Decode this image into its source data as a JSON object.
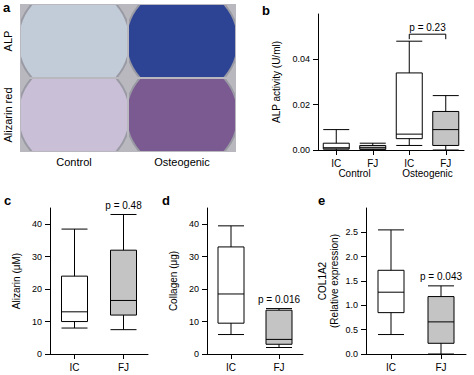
{
  "chart_data": [
    {
      "type": "box",
      "panel": "b",
      "ylabel": "ALP activity (U/ml)",
      "categories": [
        "IC",
        "FJ",
        "IC",
        "FJ"
      ],
      "groups": [
        "Control",
        "Control",
        "Osteogenic",
        "Osteogenic"
      ],
      "boxes": [
        [
          0,
          0.0005,
          0.001,
          0.003,
          0.009
        ],
        [
          0,
          0.0003,
          0.001,
          0.002,
          0.003
        ],
        [
          0.002,
          0.005,
          0.007,
          0.034,
          0.048
        ],
        [
          0,
          0.002,
          0.009,
          0.017,
          0.024
        ]
      ],
      "colors": [
        "#ffffff",
        "#c4c4c4",
        "#ffffff",
        "#c4c4c4"
      ],
      "ylim": [
        0,
        0.06
      ],
      "yticks": [
        {
          "value": 0,
          "label": "0.00"
        },
        {
          "value": 0.02,
          "label": "0.02"
        },
        {
          "value": 0.04,
          "label": "0.04"
        }
      ],
      "grid": false,
      "annotations": [
        {
          "text": "p = 0.23",
          "categories": [
            2,
            3
          ]
        }
      ]
    },
    {
      "type": "box",
      "panel": "c",
      "ylabel": "Alizarin (μM)",
      "categories": [
        "IC",
        "FJ"
      ],
      "boxes": [
        [
          8,
          10,
          13,
          24,
          38.5
        ],
        [
          7.5,
          12,
          16.5,
          32,
          43
        ]
      ],
      "colors": [
        "#ffffff",
        "#c4c4c4"
      ],
      "ylim": [
        0,
        45
      ],
      "yticks": [
        0,
        10,
        20,
        30,
        40
      ],
      "grid": false,
      "annotations": [
        {
          "text": "p = 0.48",
          "categories": [
            1
          ]
        }
      ]
    },
    {
      "type": "box",
      "panel": "d",
      "ylabel": "Collagen (μg)",
      "categories": [
        "IC",
        "FJ"
      ],
      "boxes": [
        [
          6,
          9.5,
          18.5,
          33,
          39.5
        ],
        [
          2,
          3,
          4.5,
          13.5,
          14
        ]
      ],
      "colors": [
        "#ffffff",
        "#c4c4c4"
      ],
      "ylim": [
        0,
        45
      ],
      "yticks": [
        0,
        10,
        20,
        30,
        40
      ],
      "grid": false,
      "annotations": [
        {
          "text": "p = 0.016",
          "categories": [
            1
          ]
        }
      ]
    },
    {
      "type": "box",
      "panel": "e",
      "ylabel": "COL1A2\n(Relative expression)",
      "categories": [
        "IC",
        "FJ"
      ],
      "boxes": [
        [
          0.4,
          0.85,
          1.27,
          1.72,
          2.55
        ],
        [
          0,
          0.22,
          0.66,
          1.18,
          1.4
        ]
      ],
      "colors": [
        "#ffffff",
        "#c4c4c4"
      ],
      "ylim": [
        0,
        3
      ],
      "yticks": [
        {
          "value": 0,
          "label": "0.0"
        },
        {
          "value": 0.5,
          "label": "0.5"
        },
        {
          "value": 1,
          "label": "1.0"
        },
        {
          "value": 1.5,
          "label": "1.5"
        },
        {
          "value": 2,
          "label": "2.0"
        },
        {
          "value": 2.5,
          "label": "2.5"
        }
      ],
      "grid": false,
      "annotations": [
        {
          "text": "p = 0.043",
          "categories": [
            1
          ]
        }
      ]
    }
  ],
  "panel_a": {
    "panel": "a",
    "columns": [
      "Control",
      "Osteogenic"
    ],
    "rows": [
      "ALP",
      "Alizarin red"
    ],
    "colors": [
      [
        "#c2ccd8",
        "#2d4494"
      ],
      [
        "#c9bfd6",
        "#7a5a90"
      ]
    ]
  }
}
